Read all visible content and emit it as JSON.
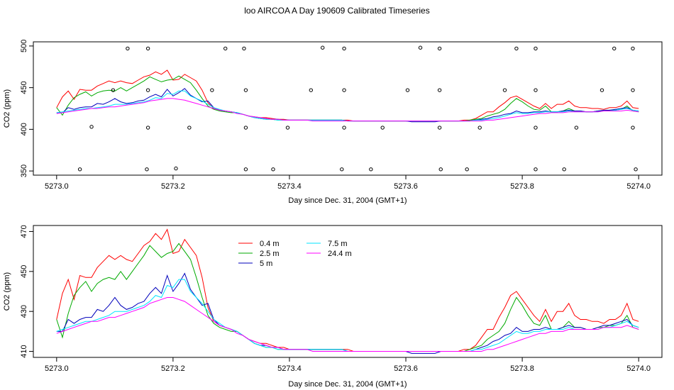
{
  "page_title": "loo AIRCOA A  Day 190609  Calibrated Timeseries",
  "chart_data": [
    {
      "type": "scatter",
      "title": "loo AIRCOA A  Day 190609  Calibrated Timeseries",
      "xlabel": "Day since Dec. 31, 2004 (GMT+1)",
      "ylabel": "CO2 (ppm)",
      "xlim": [
        5272.96,
        5274.04
      ],
      "ylim": [
        345,
        505
      ],
      "x_ticks": [
        "5273.0",
        "5273.2",
        "5273.4",
        "5273.6",
        "5273.8",
        "5274.0"
      ],
      "y_ticks": [
        "350",
        "400",
        "450",
        "500"
      ],
      "series": [
        {
          "color": "#ff0000",
          "line_key": "s04"
        },
        {
          "color": "#00aa00",
          "line_key": "s25"
        },
        {
          "color": "#0000bb",
          "line_key": "s5"
        },
        {
          "color": "#00e5ff",
          "line_key": "s75"
        },
        {
          "color": "#ff00ff",
          "line_key": "s244"
        }
      ],
      "reference_points": {
        "x": [
          5273.122,
          5273.157,
          5273.29,
          5273.322,
          5273.457,
          5273.494,
          5273.625,
          5273.658,
          5273.79,
          5273.823,
          5273.958,
          5273.99,
          5273.097,
          5273.157,
          5273.267,
          5273.325,
          5273.437,
          5273.494,
          5273.603,
          5273.658,
          5273.77,
          5273.823,
          5273.937,
          5273.99,
          5273.06,
          5273.157,
          5273.228,
          5273.325,
          5273.397,
          5273.494,
          5273.56,
          5273.658,
          5273.727,
          5273.823,
          5273.893,
          5273.99,
          5273.04,
          5273.155,
          5273.205,
          5273.325,
          5273.372,
          5273.49,
          5273.54,
          5273.66,
          5273.705,
          5273.823,
          5273.872,
          5273.995
        ],
        "y": [
          497,
          497,
          497,
          497,
          498,
          497,
          498,
          497,
          497,
          497,
          497,
          497,
          447,
          447,
          447,
          447,
          447,
          447,
          447,
          447,
          447,
          447,
          447,
          447,
          403,
          402,
          402,
          402,
          402,
          402,
          402,
          402,
          402,
          402,
          402,
          402,
          352,
          352,
          353,
          352,
          352,
          352,
          352,
          352,
          352,
          352,
          352,
          352
        ]
      }
    },
    {
      "type": "line",
      "xlabel": "Day since Dec. 31, 2004 (GMT+1)",
      "ylabel": "CO2 (ppm)",
      "xlim": [
        5272.96,
        5274.04
      ],
      "ylim": [
        407,
        473
      ],
      "x_ticks": [
        "5273.0",
        "5273.2",
        "5273.4",
        "5273.6",
        "5273.8",
        "5274.0"
      ],
      "y_ticks": [
        "410",
        "430",
        "450",
        "470"
      ],
      "legend_position": "top-left",
      "series": [
        {
          "name": "0.4 m",
          "color": "#ff0000",
          "line_key": "s04"
        },
        {
          "name": "2.5 m",
          "color": "#00aa00",
          "line_key": "s25"
        },
        {
          "name": "5 m",
          "color": "#0000bb",
          "line_key": "s5"
        },
        {
          "name": "7.5 m",
          "color": "#00e5ff",
          "line_key": "s75"
        },
        {
          "name": "24.4 m",
          "color": "#ff00ff",
          "line_key": "s244"
        }
      ]
    }
  ],
  "line_series": {
    "x_start": 5273.0,
    "x_step": 0.01,
    "s04": [
      426,
      439,
      446,
      436,
      448,
      447,
      447,
      452,
      455,
      458,
      456,
      458,
      456,
      455,
      459,
      463,
      465,
      469,
      466,
      471,
      459,
      460,
      466,
      462,
      458,
      447,
      432,
      425,
      423,
      422,
      421,
      420,
      418,
      416,
      415,
      414,
      414,
      413,
      412,
      412,
      411,
      411,
      411,
      411,
      411,
      411,
      411,
      411,
      411,
      411,
      411,
      410,
      410,
      410,
      410,
      410,
      410,
      410,
      410,
      410,
      410,
      410,
      410,
      410,
      410,
      410,
      410,
      410,
      410,
      410,
      411,
      411,
      413,
      417,
      421,
      421,
      427,
      432,
      438,
      440,
      436,
      432,
      428,
      425,
      431,
      425,
      430,
      430,
      434,
      428,
      426,
      426,
      425,
      425,
      424,
      426,
      426,
      428,
      434,
      426,
      425
    ],
    "s25": [
      426,
      417,
      429,
      438,
      442,
      445,
      440,
      444,
      446,
      447,
      446,
      450,
      446,
      450,
      454,
      458,
      463,
      460,
      457,
      459,
      460,
      464,
      460,
      456,
      447,
      437,
      428,
      424,
      422,
      421,
      420,
      420,
      418,
      416,
      414,
      413,
      412,
      412,
      411,
      411,
      411,
      411,
      411,
      411,
      411,
      411,
      411,
      411,
      411,
      411,
      410,
      410,
      410,
      410,
      410,
      410,
      410,
      410,
      410,
      410,
      410,
      410,
      410,
      410,
      410,
      410,
      410,
      410,
      410,
      410,
      410,
      411,
      412,
      413,
      416,
      418,
      420,
      424,
      431,
      437,
      433,
      428,
      424,
      423,
      428,
      421,
      421,
      422,
      425,
      422,
      422,
      421,
      421,
      422,
      422,
      423,
      423,
      424,
      428,
      422,
      421
    ],
    "s5": [
      420,
      420,
      426,
      424,
      426,
      427,
      427,
      431,
      430,
      433,
      437,
      433,
      431,
      432,
      434,
      435,
      439,
      442,
      439,
      448,
      440,
      444,
      449,
      441,
      437,
      433,
      434,
      426,
      423,
      422,
      421,
      420,
      418,
      416,
      414,
      413,
      413,
      412,
      412,
      411,
      411,
      411,
      411,
      411,
      411,
      411,
      411,
      411,
      411,
      411,
      410,
      410,
      410,
      410,
      410,
      410,
      410,
      410,
      410,
      410,
      410,
      409,
      409,
      409,
      409,
      409,
      410,
      410,
      410,
      410,
      410,
      410,
      411,
      412,
      413,
      415,
      416,
      418,
      419,
      422,
      420,
      420,
      421,
      421,
      422,
      421,
      421,
      422,
      423,
      422,
      422,
      421,
      421,
      422,
      423,
      423,
      424,
      425,
      426,
      423,
      422
    ],
    "s75": [
      420,
      421,
      422,
      423,
      424,
      425,
      425,
      426,
      427,
      428,
      430,
      430,
      430,
      431,
      432,
      433,
      435,
      438,
      437,
      443,
      442,
      446,
      446,
      440,
      437,
      434,
      430,
      426,
      424,
      422,
      421,
      420,
      418,
      416,
      414,
      413,
      412,
      412,
      411,
      411,
      411,
      411,
      411,
      411,
      411,
      411,
      411,
      411,
      411,
      411,
      410,
      410,
      410,
      410,
      410,
      410,
      410,
      410,
      410,
      410,
      410,
      410,
      410,
      410,
      410,
      410,
      410,
      410,
      410,
      410,
      410,
      410,
      411,
      411,
      412,
      413,
      414,
      416,
      418,
      420,
      419,
      419,
      420,
      420,
      421,
      421,
      421,
      421,
      422,
      421,
      421,
      421,
      421,
      421,
      422,
      422,
      423,
      424,
      425,
      423,
      422
    ],
    "s244": [
      419,
      420,
      421,
      422,
      423,
      424,
      425,
      425,
      426,
      427,
      427,
      428,
      429,
      430,
      431,
      432,
      434,
      435,
      436,
      437,
      437,
      436,
      435,
      433,
      431,
      429,
      427,
      425,
      423,
      422,
      421,
      419,
      418,
      416,
      415,
      414,
      413,
      412,
      412,
      411,
      411,
      411,
      411,
      411,
      410,
      410,
      410,
      410,
      410,
      410,
      410,
      410,
      410,
      410,
      410,
      410,
      410,
      410,
      410,
      410,
      410,
      410,
      410,
      410,
      410,
      410,
      410,
      410,
      410,
      410,
      410,
      410,
      410,
      410,
      411,
      411,
      412,
      413,
      414,
      415,
      416,
      417,
      418,
      419,
      419,
      420,
      420,
      420,
      421,
      421,
      421,
      421,
      421,
      421,
      422,
      422,
      422,
      422,
      423,
      422,
      421
    ]
  }
}
